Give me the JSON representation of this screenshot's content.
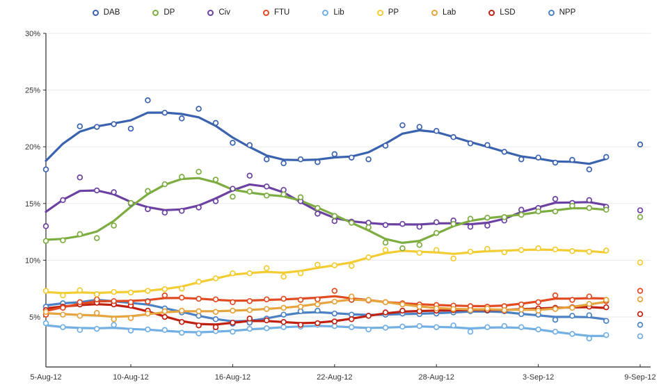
{
  "page": {
    "background": "#ffffff"
  },
  "legend": {
    "items": [
      {
        "label": "DAB",
        "color": "#3A62AE"
      },
      {
        "label": "DP",
        "color": "#7DAD41"
      },
      {
        "label": "Civ",
        "color": "#6B41A1"
      },
      {
        "label": "FTU",
        "color": "#E04B22"
      },
      {
        "label": "Lib",
        "color": "#72B0E4"
      },
      {
        "label": "PP",
        "color": "#F2CC31"
      },
      {
        "label": "Lab",
        "color": "#E5A43D"
      },
      {
        "label": "LSD",
        "color": "#C0200F"
      },
      {
        "label": "NPP",
        "color": "#4C82C4"
      }
    ]
  },
  "chart_data": {
    "type": "line",
    "title": "",
    "xlabel": "",
    "ylabel": "",
    "ylim": [
      0,
      30
    ],
    "y_ticks": [
      5,
      10,
      15,
      20,
      25,
      30
    ],
    "y_tick_suffix": "%",
    "grid": "horizontal",
    "grid_color": "#EAEAEA",
    "axis_color": "#2b2b2b",
    "label_color": "#333333",
    "x": [
      "5-Aug-12",
      "6-Aug-12",
      "7-Aug-12",
      "8-Aug-12",
      "9-Aug-12",
      "10-Aug-12",
      "11-Aug-12",
      "12-Aug-12",
      "13-Aug-12",
      "14-Aug-12",
      "15-Aug-12",
      "16-Aug-12",
      "17-Aug-12",
      "18-Aug-12",
      "19-Aug-12",
      "20-Aug-12",
      "21-Aug-12",
      "22-Aug-12",
      "23-Aug-12",
      "24-Aug-12",
      "25-Aug-12",
      "26-Aug-12",
      "27-Aug-12",
      "28-Aug-12",
      "29-Aug-12",
      "30-Aug-12",
      "31-Aug-12",
      "1-Sep-12",
      "2-Sep-12",
      "3-Sep-12",
      "4-Sep-12",
      "5-Sep-12",
      "6-Sep-12",
      "7-Sep-12",
      "8-Sep-12",
      "9-Sep-12"
    ],
    "x_tick_labels": [
      "5-Aug-12",
      "10-Aug-12",
      "16-Aug-12",
      "22-Aug-12",
      "28-Aug-12",
      "3-Sep-12",
      "9-Sep-12"
    ],
    "x_tick_indices": [
      0,
      5,
      11,
      17,
      23,
      29,
      35
    ],
    "line_end_index": 33,
    "draw_order": [
      "Lib",
      "NPP",
      "LSD",
      "FTU",
      "Lab",
      "PP",
      "DAB",
      "Civ",
      "DP"
    ],
    "series": [
      {
        "name": "DAB",
        "color": "#3A62AE",
        "values": [
          18.0,
          null,
          21.8,
          21.75,
          22.0,
          21.6,
          24.1,
          23.0,
          22.5,
          23.35,
          22.1,
          20.35,
          20.15,
          18.9,
          18.55,
          18.9,
          18.65,
          19.35,
          19.05,
          18.9,
          20.1,
          21.9,
          21.75,
          21.4,
          20.85,
          20.3,
          20.15,
          19.55,
          18.9,
          19.05,
          18.6,
          18.85,
          18.0,
          19.1,
          null,
          20.2
        ]
      },
      {
        "name": "DP",
        "color": "#7DAD41",
        "values": [
          11.7,
          11.75,
          12.3,
          11.95,
          13.05,
          15.05,
          16.1,
          16.7,
          17.35,
          17.8,
          17.1,
          15.6,
          16.05,
          15.7,
          15.8,
          15.55,
          14.6,
          13.9,
          13.3,
          12.9,
          11.55,
          11.05,
          11.35,
          12.4,
          13.2,
          13.65,
          13.75,
          13.8,
          14.0,
          14.3,
          14.3,
          14.8,
          14.6,
          14.45,
          null,
          13.8
        ]
      },
      {
        "name": "Civ",
        "color": "#6B41A1",
        "values": [
          13.0,
          15.3,
          17.3,
          16.15,
          16.0,
          15.0,
          14.5,
          14.2,
          14.35,
          14.65,
          15.2,
          16.3,
          17.45,
          16.5,
          16.2,
          15.2,
          14.1,
          13.45,
          13.4,
          13.3,
          13.1,
          13.2,
          12.95,
          13.35,
          13.5,
          12.95,
          13.05,
          13.5,
          14.45,
          14.6,
          15.4,
          15.05,
          15.3,
          14.7,
          null,
          14.4
        ]
      },
      {
        "name": "FTU",
        "color": "#E04B22",
        "values": [
          5.2,
          5.8,
          6.3,
          6.55,
          6.4,
          6.3,
          6.35,
          6.9,
          6.7,
          6.6,
          6.55,
          6.3,
          6.4,
          6.55,
          6.6,
          6.5,
          6.55,
          7.3,
          6.5,
          6.45,
          6.3,
          6.2,
          6.1,
          6.05,
          6.0,
          5.95,
          5.9,
          5.95,
          6.1,
          6.3,
          6.9,
          6.5,
          6.8,
          6.4,
          null,
          7.3
        ]
      },
      {
        "name": "Lib",
        "color": "#72B0E4",
        "values": [
          4.45,
          4.1,
          3.85,
          3.95,
          4.3,
          3.8,
          3.9,
          3.85,
          3.6,
          3.55,
          3.75,
          3.7,
          3.95,
          4.0,
          4.1,
          4.15,
          4.3,
          4.2,
          4.1,
          3.9,
          4.05,
          4.15,
          4.2,
          4.1,
          4.25,
          3.7,
          4.1,
          4.2,
          4.1,
          3.9,
          3.7,
          3.5,
          3.1,
          3.4,
          null,
          3.3
        ]
      },
      {
        "name": "PP",
        "color": "#F2CC31",
        "values": [
          7.3,
          6.9,
          7.35,
          7.0,
          7.2,
          7.15,
          7.3,
          7.45,
          7.5,
          8.1,
          8.4,
          8.85,
          8.85,
          9.3,
          8.55,
          8.85,
          9.6,
          9.55,
          9.5,
          10.25,
          10.9,
          11.0,
          10.65,
          10.9,
          10.15,
          10.75,
          11.0,
          10.7,
          10.9,
          11.05,
          10.95,
          10.8,
          10.75,
          10.85,
          null,
          9.8
        ]
      },
      {
        "name": "Lab",
        "color": "#E5A43D",
        "values": [
          5.45,
          5.2,
          5.1,
          5.35,
          4.8,
          4.9,
          5.3,
          5.5,
          5.55,
          5.5,
          5.45,
          5.55,
          5.6,
          5.7,
          5.8,
          5.9,
          6.1,
          6.35,
          6.8,
          6.5,
          6.3,
          6.1,
          5.9,
          5.75,
          5.7,
          5.6,
          5.75,
          5.6,
          5.65,
          5.55,
          5.7,
          5.8,
          6.15,
          6.5,
          null,
          6.55
        ]
      },
      {
        "name": "LSD",
        "color": "#C0200F",
        "values": [
          5.6,
          5.9,
          6.1,
          6.25,
          6.1,
          6.0,
          5.55,
          5.0,
          4.55,
          4.25,
          4.1,
          4.5,
          4.85,
          4.7,
          4.55,
          4.3,
          4.45,
          4.6,
          4.8,
          5.1,
          5.4,
          5.55,
          5.5,
          5.55,
          5.6,
          5.65,
          5.6,
          5.55,
          5.7,
          5.75,
          5.8,
          5.85,
          5.9,
          5.85,
          null,
          5.25
        ]
      },
      {
        "name": "NPP",
        "color": "#4C82C4",
        "values": [
          5.9,
          6.2,
          6.1,
          7.0,
          6.3,
          6.05,
          6.4,
          5.75,
          5.4,
          5.1,
          4.8,
          4.4,
          4.5,
          4.85,
          5.2,
          5.5,
          5.55,
          5.3,
          5.2,
          5.1,
          5.2,
          5.3,
          5.25,
          5.3,
          5.4,
          5.5,
          5.55,
          5.5,
          5.25,
          5.2,
          4.75,
          5.1,
          5.15,
          4.65,
          null,
          4.3
        ]
      }
    ]
  }
}
